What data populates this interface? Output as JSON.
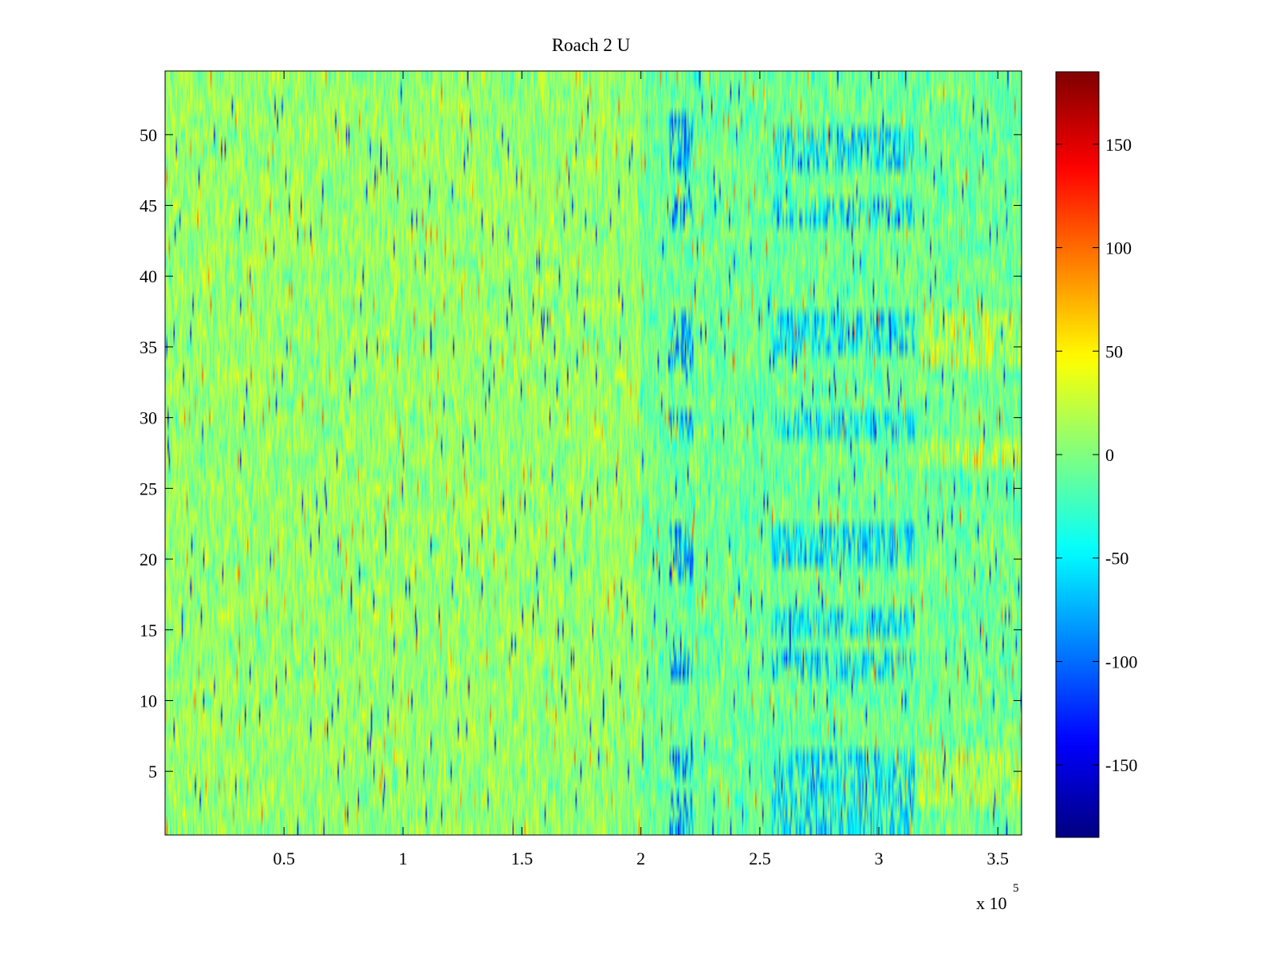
{
  "chart_data": {
    "type": "heatmap",
    "title": "Roach 2 U",
    "xlabel": "",
    "ylabel": "",
    "x_exponent_label": {
      "base": "x 10",
      "exponent": "5"
    },
    "xlim": [
      0,
      3.6
    ],
    "ylim": [
      0.5,
      54.5
    ],
    "x_scale_factor": 100000,
    "x_ticks": [
      0.5,
      1,
      1.5,
      2,
      2.5,
      3,
      3.5
    ],
    "x_tick_labels": [
      "0.5",
      "1",
      "1.5",
      "2",
      "2.5",
      "3",
      "3.5"
    ],
    "y_ticks": [
      5,
      10,
      15,
      20,
      25,
      30,
      35,
      40,
      45,
      50
    ],
    "y_tick_labels": [
      "5",
      "10",
      "15",
      "20",
      "25",
      "30",
      "35",
      "40",
      "45",
      "50"
    ],
    "rows": 54,
    "colorbar": {
      "colormap": "jet",
      "clim": [
        -185,
        185
      ],
      "ticks": [
        150,
        100,
        50,
        0,
        -50,
        -100,
        -150
      ],
      "tick_labels": [
        "150",
        "100",
        "50",
        "0",
        "-50",
        "-100",
        "-150"
      ]
    },
    "background_value_mean": 0,
    "regions_description_values": [
      {
        "x_range": [
          2.12,
          2.22
        ],
        "rows": [
          [
            1,
            3
          ],
          [
            5,
            6
          ],
          [
            12,
            13
          ],
          [
            19,
            22
          ],
          [
            29,
            30
          ],
          [
            34,
            37
          ],
          [
            44,
            45
          ],
          [
            48,
            51
          ]
        ],
        "value": -110
      },
      {
        "x_range": [
          2.55,
          3.15
        ],
        "rows": [
          [
            1,
            3
          ],
          [
            4,
            6
          ],
          [
            12,
            13
          ],
          [
            15,
            16
          ],
          [
            20,
            22
          ],
          [
            29,
            30
          ],
          [
            35,
            37
          ],
          [
            44,
            45
          ],
          [
            48,
            50
          ]
        ],
        "value": -80
      },
      {
        "x_range": [
          3.17,
          3.6
        ],
        "rows": [
          [
            3,
            6
          ],
          [
            27,
            28
          ],
          [
            34,
            37
          ]
        ],
        "value": 40
      }
    ],
    "grid": false,
    "colors": {
      "axes": "#000000",
      "background": "#ffffff"
    }
  }
}
